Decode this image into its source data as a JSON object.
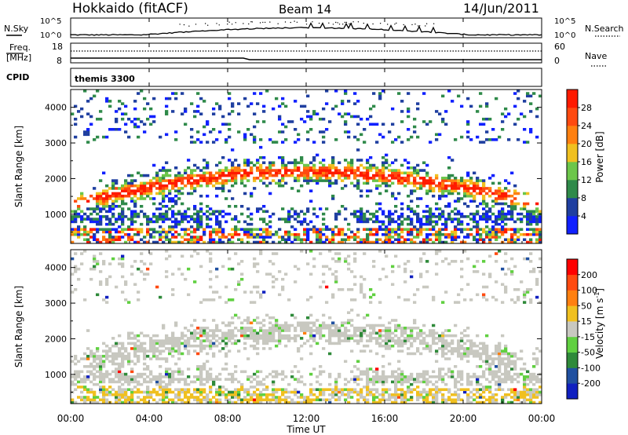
{
  "header": {
    "station": "Hokkaido (fitACF)",
    "beam": "Beam 14",
    "date": "14/Jun/2011"
  },
  "top_panels": {
    "nsky_label": "N.Sky",
    "nsky_ticks": [
      "10^5",
      "10^0"
    ],
    "nsearch_label": "N.Search",
    "nsearch_ticks": [
      "10^5",
      "10^0"
    ],
    "freq_label_1": "Freq.",
    "freq_label_2": "[MHz]",
    "freq_ticks": [
      "18",
      "8"
    ],
    "nave_label": "Nave",
    "nave_ticks": [
      "60",
      "0"
    ],
    "cpid_label": "CPID",
    "cpid_value": "themis 3300"
  },
  "chart_data": [
    {
      "type": "heatmap",
      "quantity": "power",
      "ylabel": "Slant Range [km]",
      "ylim": [
        180,
        4500
      ],
      "yticks": [
        "1000",
        "2000",
        "3000",
        "4000"
      ],
      "colorbar_label": "Power [dB]",
      "colorbar_ticks": [
        "4",
        "8",
        "12",
        "16",
        "20",
        "24",
        "28"
      ],
      "colorbar_colors": [
        "#1020ff",
        "#1f3fa0",
        "#2f8a4a",
        "#6cc64a",
        "#f0c020",
        "#ff8010",
        "#ff4a10",
        "#ff1a00"
      ]
    },
    {
      "type": "heatmap",
      "quantity": "velocity",
      "ylabel": "Slant Range [km]",
      "ylim": [
        180,
        4500
      ],
      "yticks": [
        "1000",
        "2000",
        "3000",
        "4000"
      ],
      "colorbar_label": "Velocity [m s",
      "colorbar_label_sup": "-1",
      "colorbar_label_end": "]",
      "colorbar_ticks": [
        "200",
        "100",
        "50",
        "15",
        "-15",
        "-50",
        "-100",
        "-200"
      ],
      "colorbar_colors": [
        "#1020c0",
        "#2050a0",
        "#2f8a3a",
        "#60d040",
        "#c8c8c0",
        "#f0c020",
        "#ff8010",
        "#ff4a10",
        "#ff0000"
      ]
    }
  ],
  "time_axis": {
    "ticks": [
      "00:00",
      "04:00",
      "08:00",
      "12:00",
      "16:00",
      "20:00",
      "00:00"
    ],
    "xlabel": "Time UT"
  }
}
